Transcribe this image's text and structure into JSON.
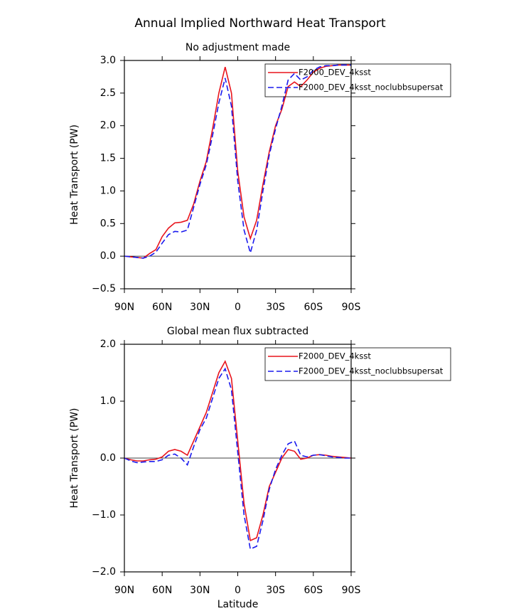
{
  "title": "Annual Implied Northward Heat Transport",
  "chart_data": [
    {
      "type": "line",
      "subtitle": "No adjustment made",
      "y_label": "Heat Transport (PW)",
      "x": [
        90,
        85,
        80,
        75,
        70,
        65,
        60,
        55,
        50,
        45,
        40,
        35,
        30,
        25,
        20,
        15,
        10,
        5,
        0,
        -5,
        -10,
        -15,
        -20,
        -25,
        -30,
        -35,
        -40,
        -45,
        -50,
        -55,
        -60,
        -65,
        -70,
        -75,
        -80,
        -85,
        -90
      ],
      "xlim": [
        90,
        -90
      ],
      "xticks": [
        {
          "value": 90,
          "label": "90N"
        },
        {
          "value": 60,
          "label": "60N"
        },
        {
          "value": 30,
          "label": "30N"
        },
        0,
        {
          "value": -30,
          "label": "30S"
        },
        {
          "value": -60,
          "label": "60S"
        },
        {
          "value": -90,
          "label": "90S"
        }
      ],
      "ylim": [
        -0.5,
        3.0
      ],
      "yticks": [
        {
          "value": -0.5,
          "label": "−0.5"
        },
        {
          "value": 0,
          "label": "0.0"
        },
        {
          "value": 0.5,
          "label": "0.5"
        },
        {
          "value": 1,
          "label": "1.0"
        },
        {
          "value": 1.5,
          "label": "1.5"
        },
        {
          "value": 2,
          "label": "2.0"
        },
        {
          "value": 2.5,
          "label": "2.5"
        },
        {
          "value": 3,
          "label": "3.0"
        }
      ],
      "legend": "upper-right",
      "series": [
        {
          "name": "F2000_DEV_4ksst",
          "color": "#e8141c",
          "linestyle": "solid",
          "values": [
            0,
            -0.01,
            -0.02,
            -0.03,
            0.04,
            0.1,
            0.3,
            0.43,
            0.51,
            0.52,
            0.55,
            0.8,
            1.15,
            1.45,
            1.95,
            2.5,
            2.9,
            2.5,
            1.3,
            0.6,
            0.27,
            0.55,
            1.1,
            1.6,
            2.0,
            2.25,
            2.6,
            2.67,
            2.6,
            2.7,
            2.82,
            2.88,
            2.91,
            2.92,
            2.93,
            2.93,
            2.93
          ]
        },
        {
          "name": "F2000_DEV_4ksst_noclubbsupersat",
          "color": "#1a1aee",
          "linestyle": "dashed",
          "values": [
            0,
            -0.01,
            -0.02,
            -0.03,
            0.0,
            0.06,
            0.2,
            0.33,
            0.38,
            0.37,
            0.4,
            0.75,
            1.1,
            1.4,
            1.85,
            2.35,
            2.73,
            2.3,
            1.15,
            0.4,
            0.05,
            0.4,
            1.0,
            1.55,
            1.95,
            2.3,
            2.7,
            2.8,
            2.7,
            2.75,
            2.85,
            2.9,
            2.92,
            2.92,
            2.93,
            2.93,
            2.93
          ]
        }
      ]
    },
    {
      "type": "line",
      "subtitle": "Global mean flux subtracted",
      "y_label": "Heat Transport (PW)",
      "x_label": "Latitude",
      "x": [
        90,
        85,
        80,
        75,
        70,
        65,
        60,
        55,
        50,
        45,
        40,
        35,
        30,
        25,
        20,
        15,
        10,
        5,
        0,
        -5,
        -10,
        -15,
        -20,
        -25,
        -30,
        -35,
        -40,
        -45,
        -50,
        -55,
        -60,
        -65,
        -70,
        -75,
        -80,
        -85,
        -90
      ],
      "xlim": [
        90,
        -90
      ],
      "xticks": [
        {
          "value": 90,
          "label": "90N"
        },
        {
          "value": 60,
          "label": "60N"
        },
        {
          "value": 30,
          "label": "30N"
        },
        0,
        {
          "value": -30,
          "label": "30S"
        },
        {
          "value": -60,
          "label": "60S"
        },
        {
          "value": -90,
          "label": "90S"
        }
      ],
      "ylim": [
        -2.0,
        2.0
      ],
      "yticks": [
        {
          "value": -2,
          "label": "−2.0"
        },
        {
          "value": -1,
          "label": "−1.0"
        },
        {
          "value": 0,
          "label": "0.0"
        },
        {
          "value": 1,
          "label": "1.0"
        },
        {
          "value": 2,
          "label": "2.0"
        }
      ],
      "legend": "upper-right",
      "series": [
        {
          "name": "F2000_DEV_4ksst",
          "color": "#e8141c",
          "linestyle": "solid",
          "values": [
            0,
            -0.03,
            -0.05,
            -0.05,
            -0.03,
            -0.02,
            0.02,
            0.12,
            0.15,
            0.12,
            0.05,
            0.3,
            0.55,
            0.8,
            1.15,
            1.5,
            1.7,
            1.4,
            0.3,
            -0.8,
            -1.45,
            -1.4,
            -1.0,
            -0.5,
            -0.25,
            0.0,
            0.15,
            0.12,
            -0.02,
            0.0,
            0.05,
            0.06,
            0.05,
            0.03,
            0.02,
            0.01,
            0
          ]
        },
        {
          "name": "F2000_DEV_4ksst_noclubbsupersat",
          "color": "#1a1aee",
          "linestyle": "dashed",
          "values": [
            0,
            -0.05,
            -0.08,
            -0.07,
            -0.06,
            -0.06,
            -0.03,
            0.05,
            0.07,
            0.0,
            -0.12,
            0.2,
            0.5,
            0.7,
            1.05,
            1.4,
            1.57,
            1.2,
            0.1,
            -1.0,
            -1.6,
            -1.55,
            -1.1,
            -0.55,
            -0.2,
            0.05,
            0.25,
            0.3,
            0.05,
            0.02,
            0.05,
            0.06,
            0.04,
            0.02,
            0.01,
            0.0,
            0
          ]
        }
      ]
    }
  ]
}
